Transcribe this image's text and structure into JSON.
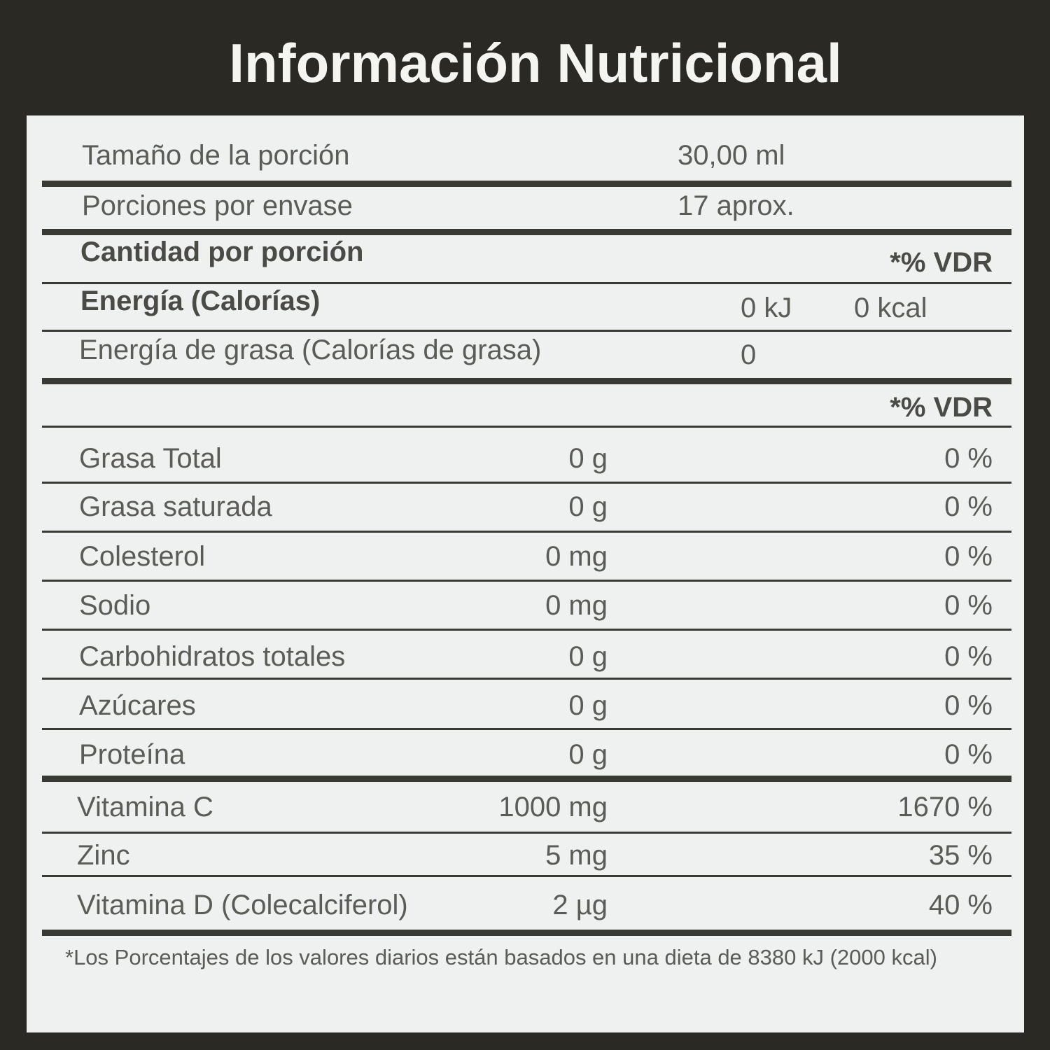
{
  "title": "Información Nutricional",
  "serving": [
    {
      "label": "Tamaño de la porción",
      "value": "30,00 ml"
    },
    {
      "label": "Porciones por envase",
      "value": "17 aprox."
    }
  ],
  "amount_header": {
    "label": "Cantidad por porción",
    "dv": "*% VDR"
  },
  "energy": {
    "label": "Energía (Calorías)",
    "kj": "0 kJ",
    "kcal": "0 kcal"
  },
  "fat_energy": {
    "label": "Energía de grasa (Calorías de grasa)",
    "value": "0"
  },
  "dv_header": "*% VDR",
  "nutrients": [
    {
      "name": "Grasa Total",
      "amount": "0 g",
      "dv": "0 %"
    },
    {
      "name": "Grasa saturada",
      "amount": "0 g",
      "dv": "0 %"
    },
    {
      "name": "Colesterol",
      "amount": "0 mg",
      "dv": "0 %"
    },
    {
      "name": "Sodio",
      "amount": "0 mg",
      "dv": "0 %"
    },
    {
      "name": "Carbohidratos totales",
      "amount": "0 g",
      "dv": "0 %"
    },
    {
      "name": "Azúcares",
      "amount": "0 g",
      "dv": "0 %"
    },
    {
      "name": "Proteína",
      "amount": "0 g",
      "dv": "0 %"
    }
  ],
  "vitamins": [
    {
      "name": "Vitamina C",
      "amount": "1000 mg",
      "dv": "1670 %"
    },
    {
      "name": "Zinc",
      "amount": "5 mg",
      "dv": "35 %"
    },
    {
      "name": "Vitamina D (Colecalciferol)",
      "amount": "2 µg",
      "dv": "40 %"
    }
  ],
  "footnote": "*Los Porcentajes de los valores diarios están basados en una dieta de 8380 kJ (2000 kcal)"
}
